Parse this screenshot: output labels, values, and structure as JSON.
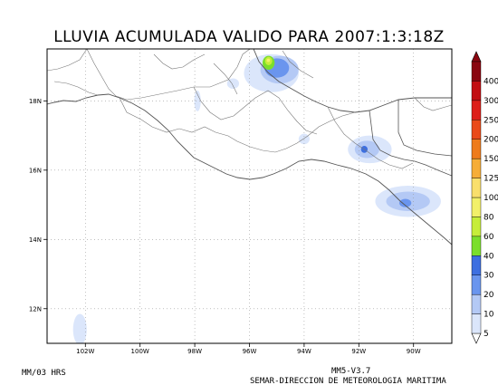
{
  "title": "LLUVIA ACUMULADA VALIDO PARA 2007:1:3:18Z",
  "footer": {
    "units": "MM/03 HRS",
    "model": "MM5-V3.7",
    "agency": "SEMAR-DIRECCION DE METEOROLOGIA MARITIMA"
  },
  "map": {
    "lon_range": [
      -103.4,
      -88.6
    ],
    "lat_range": [
      11.0,
      19.5
    ],
    "lon_ticks": [
      {
        "value": -102,
        "label": "102W"
      },
      {
        "value": -100,
        "label": "100W"
      },
      {
        "value": -98,
        "label": "98W"
      },
      {
        "value": -96,
        "label": "96W"
      },
      {
        "value": -94,
        "label": "94W"
      },
      {
        "value": -92,
        "label": "92W"
      },
      {
        "value": -90,
        "label": "90W"
      }
    ],
    "lat_ticks": [
      {
        "value": 12,
        "label": "12N"
      },
      {
        "value": 14,
        "label": "14N"
      },
      {
        "value": 16,
        "label": "16N"
      },
      {
        "value": 18,
        "label": "18N"
      }
    ],
    "grid": true
  },
  "colorbar": {
    "levels": [
      "5",
      "10",
      "20",
      "30",
      "40",
      "60",
      "80",
      "100",
      "125",
      "150",
      "200",
      "250",
      "300",
      "400"
    ],
    "colors": [
      "#dbe6fb",
      "#b4c9f5",
      "#6a95ee",
      "#3d6fe0",
      "#7bde2c",
      "#c6ed3a",
      "#f2f06a",
      "#f9df6c",
      "#f6ad37",
      "#ee7b1c",
      "#ea4a1a",
      "#dd1e1a",
      "#c20e12",
      "#8a0610"
    ]
  },
  "rain_cells": [
    {
      "lon": -95.2,
      "lat": 18.8,
      "rx": 1.0,
      "ry": 0.55,
      "level": 0
    },
    {
      "lon": -94.9,
      "lat": 18.9,
      "rx": 0.7,
      "ry": 0.4,
      "level": 1
    },
    {
      "lon": -95.0,
      "lat": 18.95,
      "rx": 0.45,
      "ry": 0.28,
      "level": 2
    },
    {
      "lon": -95.3,
      "lat": 19.1,
      "rx": 0.22,
      "ry": 0.2,
      "level": 4
    },
    {
      "lon": -95.3,
      "lat": 19.15,
      "rx": 0.13,
      "ry": 0.12,
      "level": 5
    },
    {
      "lon": -95.31,
      "lat": 19.17,
      "rx": 0.06,
      "ry": 0.05,
      "level": 6
    },
    {
      "lon": -91.6,
      "lat": 16.6,
      "rx": 0.8,
      "ry": 0.4,
      "level": 0
    },
    {
      "lon": -91.7,
      "lat": 16.6,
      "rx": 0.45,
      "ry": 0.25,
      "level": 1
    },
    {
      "lon": -91.8,
      "lat": 16.6,
      "rx": 0.12,
      "ry": 0.1,
      "level": 3
    },
    {
      "lon": -90.2,
      "lat": 15.1,
      "rx": 1.2,
      "ry": 0.45,
      "level": 0
    },
    {
      "lon": -90.2,
      "lat": 15.1,
      "rx": 0.8,
      "ry": 0.28,
      "level": 1
    },
    {
      "lon": -90.3,
      "lat": 15.05,
      "rx": 0.22,
      "ry": 0.12,
      "level": 2
    },
    {
      "lon": -102.2,
      "lat": 11.4,
      "rx": 0.25,
      "ry": 0.45,
      "level": 0
    },
    {
      "lon": -97.9,
      "lat": 18.0,
      "rx": 0.12,
      "ry": 0.3,
      "level": 0
    },
    {
      "lon": -96.6,
      "lat": 18.5,
      "rx": 0.22,
      "ry": 0.15,
      "level": 0
    },
    {
      "lon": -94.0,
      "lat": 16.9,
      "rx": 0.2,
      "ry": 0.15,
      "level": 0
    }
  ]
}
